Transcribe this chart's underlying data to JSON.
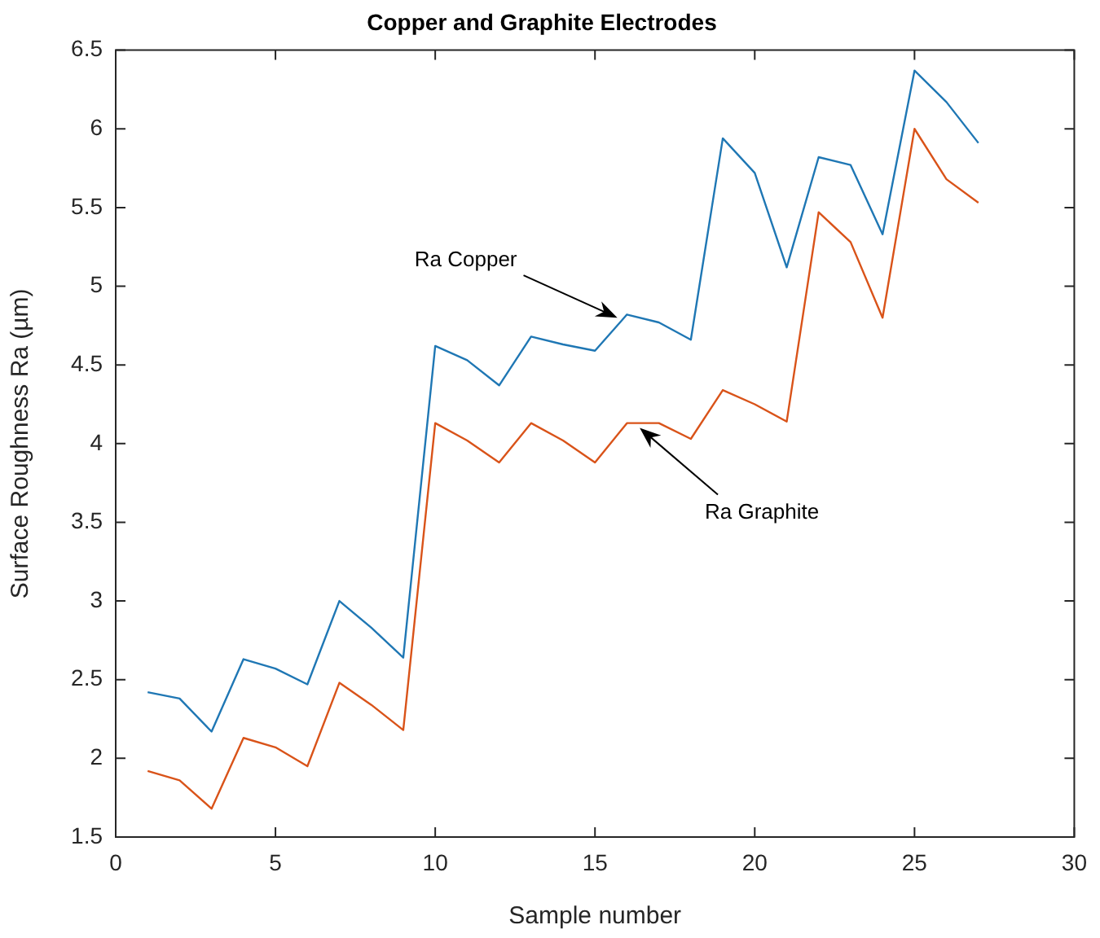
{
  "chart_data": {
    "type": "line",
    "title": "Copper and Graphite Electrodes",
    "xlabel": "Sample number",
    "ylabel": "Surface Roughness Ra (µm)",
    "x": [
      1,
      2,
      3,
      4,
      5,
      6,
      7,
      8,
      9,
      10,
      11,
      12,
      13,
      14,
      15,
      16,
      17,
      18,
      19,
      20,
      21,
      22,
      23,
      24,
      25,
      26,
      27
    ],
    "series": [
      {
        "color": "#1f77b4",
        "values": [
          2.42,
          2.38,
          2.17,
          2.63,
          2.57,
          2.47,
          3.0,
          2.83,
          2.64,
          4.62,
          4.53,
          4.37,
          4.68,
          4.63,
          4.59,
          4.82,
          4.77,
          4.66,
          5.94,
          5.72,
          5.12,
          5.82,
          5.77,
          5.33,
          6.37,
          6.17,
          5.91
        ]
      },
      {
        "color": "#d95319",
        "values": [
          1.92,
          1.86,
          1.68,
          2.13,
          2.07,
          1.95,
          2.48,
          2.34,
          2.18,
          4.13,
          4.02,
          3.88,
          4.13,
          4.02,
          3.88,
          4.13,
          4.13,
          4.03,
          4.34,
          4.25,
          4.14,
          5.47,
          5.28,
          4.8,
          6.0,
          5.68,
          5.53
        ]
      }
    ],
    "annotations": [
      {
        "text": "Ra Copper",
        "x": 15.7,
        "y": 4.8
      },
      {
        "text": "Ra Graphite",
        "x": 16.4,
        "y": 4.1
      }
    ],
    "xlim": [
      0,
      30
    ],
    "xticks": [
      0,
      5,
      10,
      15,
      20,
      25,
      30
    ],
    "ylim": [
      1.5,
      6.5
    ],
    "yticks": [
      1.5,
      2,
      2.5,
      3,
      3.5,
      4,
      4.5,
      5,
      5.5,
      6,
      6.5
    ],
    "grid": false,
    "legend": false,
    "marker": "none",
    "line_style": "solid"
  }
}
